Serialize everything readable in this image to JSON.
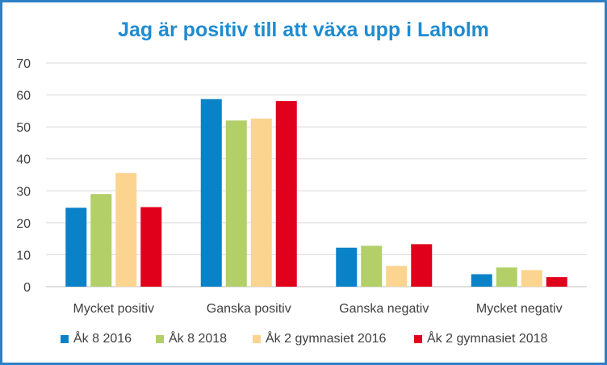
{
  "chart_data": {
    "type": "bar",
    "title": "Jag är positiv till att växa upp i Laholm",
    "xlabel": "",
    "ylabel": "",
    "categories": [
      "Mycket positiv",
      "Ganska positiv",
      "Ganska negativ",
      "Mycket negativ"
    ],
    "series": [
      {
        "name": "Åk 8 2016",
        "color": "#0a82c8",
        "values": [
          24.7,
          58.7,
          12.2,
          3.9
        ]
      },
      {
        "name": "Åk 8 2018",
        "color": "#b2cf68",
        "values": [
          29.0,
          52.0,
          12.8,
          6.0
        ]
      },
      {
        "name": "Åk 2 gymnasiet 2016",
        "color": "#fbd48f",
        "values": [
          35.6,
          52.6,
          6.5,
          5.2
        ]
      },
      {
        "name": "Åk 2 gymnasiet 2018",
        "color": "#e0001b",
        "values": [
          24.9,
          58.1,
          13.3,
          3.0
        ]
      }
    ],
    "yticks": [
      0,
      10,
      20,
      30,
      40,
      50,
      60,
      70
    ],
    "ylim": [
      0,
      70
    ],
    "grid": true,
    "legend": "bottom"
  }
}
